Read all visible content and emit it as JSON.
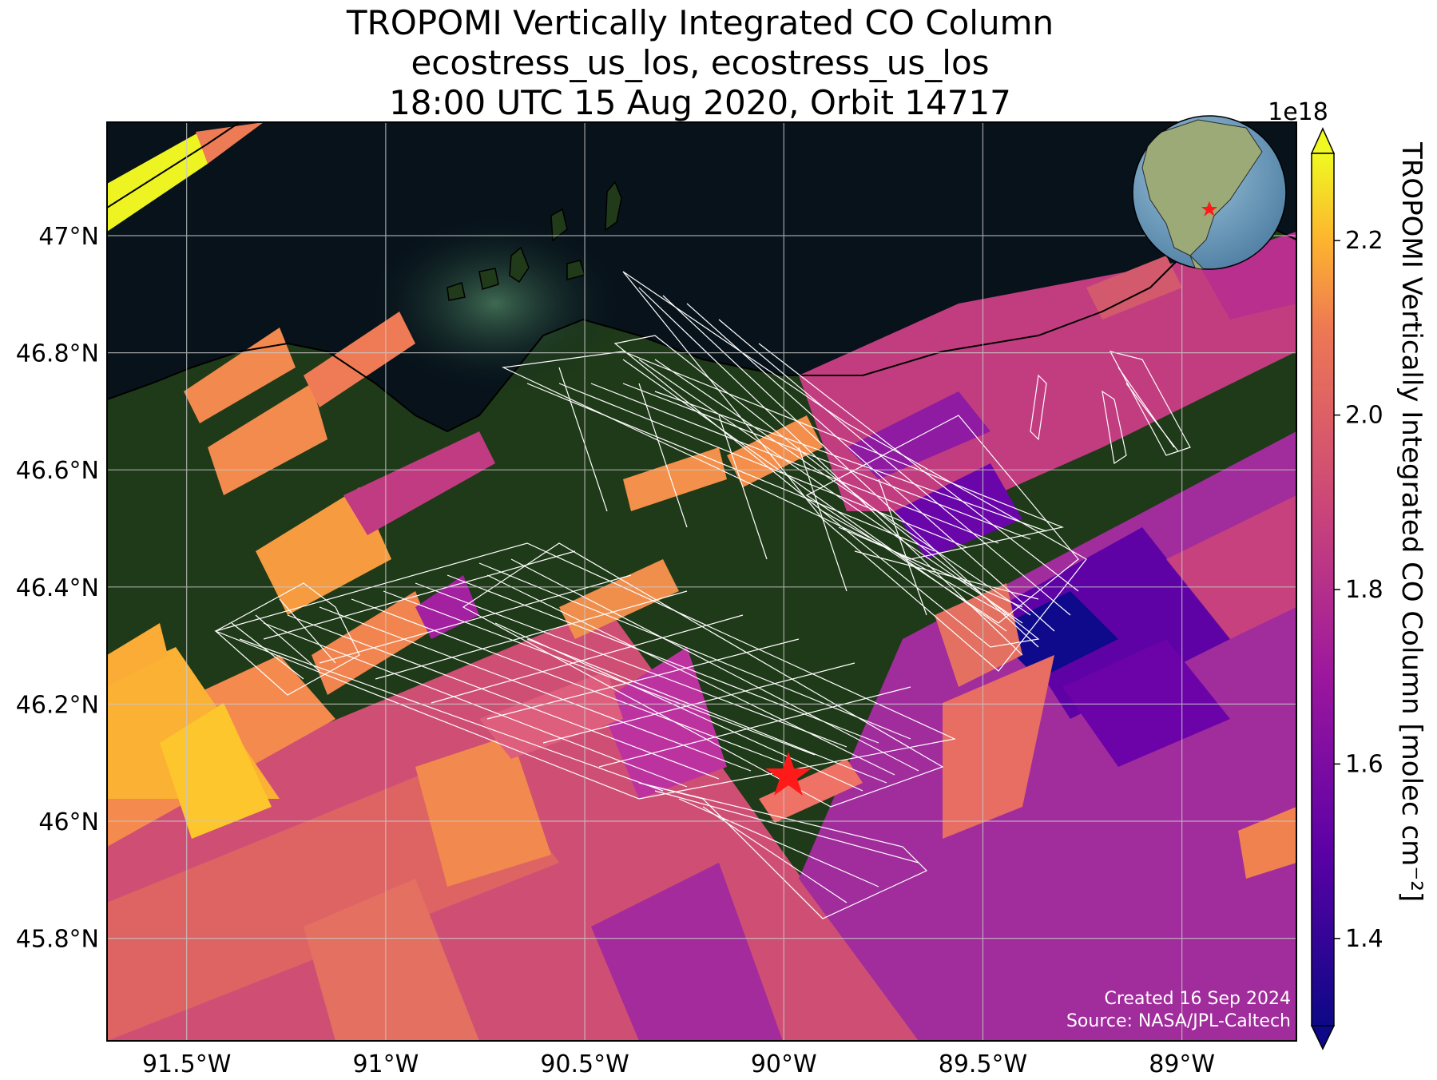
{
  "title": {
    "line1": "TROPOMI Vertically Integrated CO Column",
    "line2": "ecostress_us_los, ecostress_us_los",
    "line3": "18:00 UTC 15 Aug 2020, Orbit 14717"
  },
  "map": {
    "basemap": "satellite imagery",
    "lon_range": [
      -91.7,
      -88.7
    ],
    "lat_range": [
      45.62,
      47.2
    ],
    "lon_ticks": [
      {
        "value": -91.5,
        "label": "91.5°W"
      },
      {
        "value": -91.0,
        "label": "91°W"
      },
      {
        "value": -90.5,
        "label": "90.5°W"
      },
      {
        "value": -90.0,
        "label": "90°W"
      },
      {
        "value": -89.5,
        "label": "89.5°W"
      },
      {
        "value": -89.0,
        "label": "89°W"
      }
    ],
    "lat_ticks": [
      {
        "value": 47.0,
        "label": "47°N"
      },
      {
        "value": 46.8,
        "label": "46.8°N"
      },
      {
        "value": 46.6,
        "label": "46.6°N"
      },
      {
        "value": 46.4,
        "label": "46.4°N"
      },
      {
        "value": 46.2,
        "label": "46.2°N"
      },
      {
        "value": 46.0,
        "label": "46°N"
      },
      {
        "value": 45.8,
        "label": "45.8°N"
      }
    ],
    "grid": true,
    "target_marker": {
      "lon": -89.97,
      "lat": 46.09,
      "symbol": "red star"
    },
    "overlay_grids": "white ECOSTRESS target grids",
    "colors": {
      "lake": "#07121a",
      "land": "#1f3a18",
      "marker": "#ff1a1a",
      "grid_lines": "#c8c8c8"
    }
  },
  "colorbar": {
    "label": "TROPOMI Vertically Integrated CO Column [molec cm⁻²]",
    "multiplier": "1e18",
    "colormap": "plasma",
    "range": [
      1.3,
      2.3
    ],
    "extend": "both",
    "ticks": [
      {
        "value": 1.4,
        "label": "1.4"
      },
      {
        "value": 1.6,
        "label": "1.6"
      },
      {
        "value": 1.8,
        "label": "1.8"
      },
      {
        "value": 2.0,
        "label": "2.0"
      },
      {
        "value": 2.2,
        "label": "2.2"
      }
    ]
  },
  "inset_globe": {
    "description": "orthographic globe",
    "marker": "red star"
  },
  "credit": {
    "created": "Created 16 Sep 2024",
    "source": "Source: NASA/JPL-Caltech"
  }
}
